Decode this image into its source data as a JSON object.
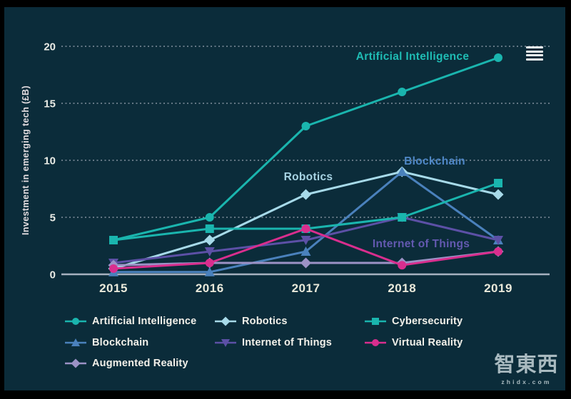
{
  "watermark": {
    "logo": "智東西",
    "url": "zhidx.com"
  },
  "menu": {
    "icon": "hamburger"
  },
  "chart_data": {
    "type": "line",
    "title": "",
    "ylabel": "Investment in emerging tech (£B)",
    "xlabel": "",
    "x_labels": [
      "2015",
      "2016",
      "2017",
      "2018",
      "2019"
    ],
    "yticks": [
      0,
      5,
      10,
      15,
      20
    ],
    "ylim": [
      0,
      20
    ],
    "grid": "dotted-horizontal",
    "legend_position": "bottom",
    "series": [
      {
        "name": "Artificial Intelligence",
        "marker": "circle",
        "color": "#1ab5ae",
        "values": [
          3,
          5,
          13,
          16,
          19
        ]
      },
      {
        "name": "Robotics",
        "marker": "diamond",
        "color": "#a7dae9",
        "values": [
          0.5,
          3,
          7,
          9,
          7
        ]
      },
      {
        "name": "Cybersecurity",
        "marker": "square",
        "color": "#1ab5ae",
        "values": [
          3,
          4,
          4,
          5,
          8
        ]
      },
      {
        "name": "Blockchain",
        "marker": "triangle-up",
        "color": "#4a81bc",
        "values": [
          0.2,
          0.2,
          2,
          9,
          3
        ]
      },
      {
        "name": "Internet of Things",
        "marker": "triangle-down",
        "color": "#5c50a6",
        "values": [
          1,
          2,
          3,
          5,
          3
        ]
      },
      {
        "name": "Virtual Reality",
        "marker": "circle",
        "color": "#d92e8e",
        "values": [
          0.5,
          1,
          4,
          0.8,
          2
        ]
      },
      {
        "name": "Augmented Reality",
        "marker": "diamond",
        "color": "#9c92c6",
        "values": [
          0.8,
          1,
          1,
          1,
          2
        ]
      }
    ],
    "inline_labels": [
      {
        "series": "Artificial Intelligence",
        "text": "Artificial Intelligence",
        "color": "#1fbcb4"
      },
      {
        "series": "Robotics",
        "text": "Robotics",
        "color": "#a7d3e3"
      },
      {
        "series": "Blockchain",
        "text": "Blockchain",
        "color": "#4f87c6"
      },
      {
        "series": "Internet of Things",
        "text": "Internet of Things",
        "color": "#6359b0"
      }
    ],
    "legend_rows": [
      [
        "Artificial Intelligence",
        "Robotics",
        "Cybersecurity"
      ],
      [
        "Blockchain",
        "Internet of Things",
        "Virtual Reality"
      ],
      [
        "Augmented Reality"
      ]
    ]
  }
}
